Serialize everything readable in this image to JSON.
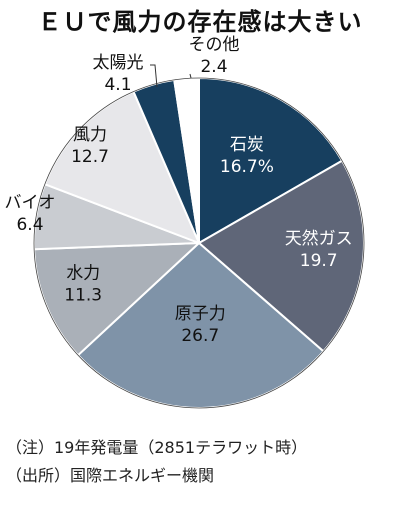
{
  "chart_data": {
    "type": "pie",
    "title": "ＥＵで風力の存在感は大きい",
    "slices": [
      {
        "name": "石炭",
        "value": 16.7,
        "label": "16.7%",
        "color": "#173f5f",
        "text_color": "#ffffff"
      },
      {
        "name": "天然ガス",
        "value": 19.7,
        "label": "19.7",
        "color": "#5f6678",
        "text_color": "#ffffff"
      },
      {
        "name": "原子力",
        "value": 26.7,
        "label": "26.7",
        "color": "#7f93a8",
        "text_color": "#111111"
      },
      {
        "name": "水力",
        "value": 11.3,
        "label": "11.3",
        "color": "#aab0b8",
        "text_color": "#111111"
      },
      {
        "name": "バイオ",
        "value": 6.4,
        "label": "6.4",
        "color": "#c9ccd1",
        "text_color": "#111111"
      },
      {
        "name": "風力",
        "value": 12.7,
        "label": "12.7",
        "color": "#e7e7ea",
        "text_color": "#111111"
      },
      {
        "name": "太陽光",
        "value": 4.1,
        "label": "4.1",
        "color": "#173f5f",
        "text_color": "#111111"
      },
      {
        "name": "その他",
        "value": 2.4,
        "label": "2.4",
        "color": "#ffffff",
        "text_color": "#111111"
      }
    ]
  },
  "notes": {
    "note1": "（注）19年発電量（2851テラワット時）",
    "note2": "（出所）国際エネルギー機関"
  }
}
